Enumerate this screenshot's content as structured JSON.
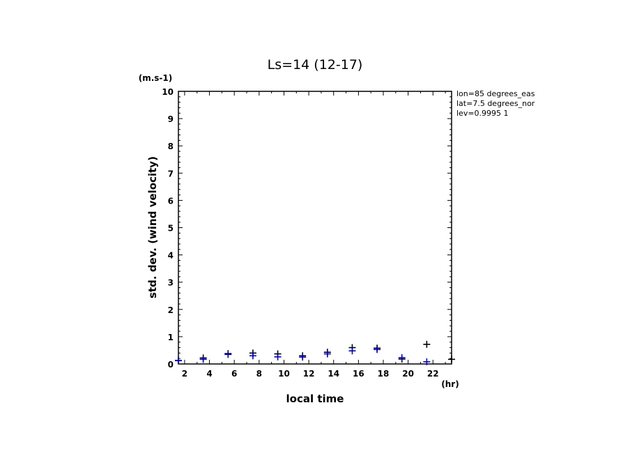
{
  "chart_data": {
    "type": "scatter",
    "title": "Ls=14 (12-17)",
    "xlabel": "local time",
    "ylabel": "std. dev. (wind velocity)",
    "x_unit": "(hr)",
    "y_unit": "(m.s-1)",
    "xlim": [
      1.5,
      23.5
    ],
    "ylim": [
      0,
      10
    ],
    "x_ticks": [
      "2",
      "4",
      "6",
      "8",
      "10",
      "12",
      "14",
      "16",
      "18",
      "20",
      "22"
    ],
    "y_ticks": [
      "0",
      "1",
      "2",
      "3",
      "4",
      "5",
      "6",
      "7",
      "8",
      "9",
      "10"
    ],
    "annotations": [
      "lon=85 degrees_eas",
      "lat=7.5 degrees_nor",
      "lev=0.9995 1"
    ],
    "grid": false,
    "series": [
      {
        "color": "#000000",
        "marker": "plus",
        "x": [
          1.5,
          3.5,
          5.5,
          7.5,
          9.5,
          11.5,
          13.5,
          15.5,
          17.5,
          19.5,
          21.5,
          23.5
        ],
        "y": [
          0.13,
          0.22,
          0.38,
          0.4,
          0.37,
          0.3,
          0.43,
          0.6,
          0.58,
          0.18,
          0.72,
          0.17
        ]
      },
      {
        "color": "#0000cc",
        "marker": "plus",
        "x": [
          1.5,
          3.5,
          5.5,
          7.5,
          9.5,
          11.5,
          13.5,
          15.5,
          17.5,
          19.5,
          21.5
        ],
        "y": [
          0.12,
          0.17,
          0.35,
          0.3,
          0.26,
          0.25,
          0.37,
          0.48,
          0.53,
          0.23,
          0.08
        ]
      }
    ]
  }
}
